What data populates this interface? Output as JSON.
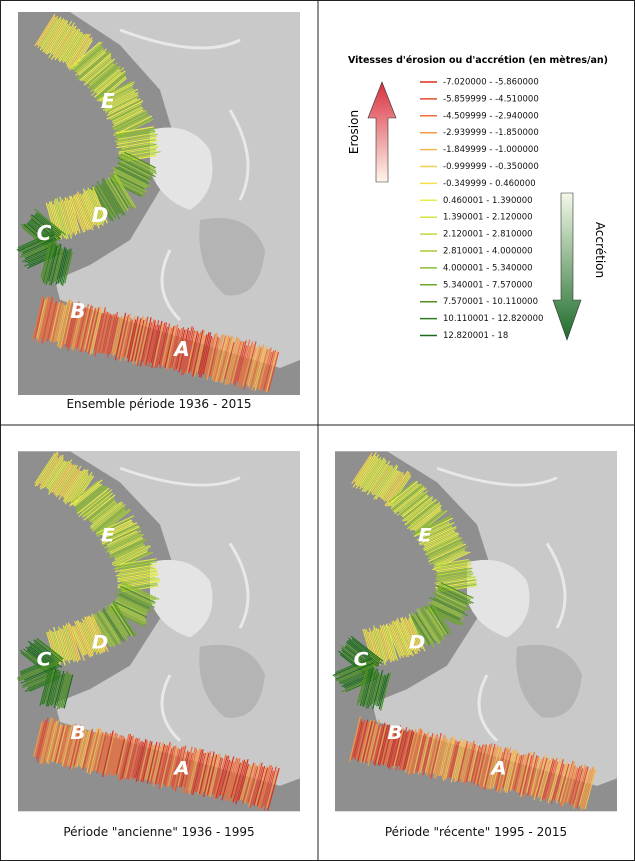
{
  "panels": [
    {
      "caption": "Ensemble période 1936 - 2015",
      "labels": [
        "E",
        "D",
        "C",
        "B",
        "A"
      ]
    },
    {
      "caption": "Période \"ancienne\" 1936 - 1995",
      "labels": [
        "E",
        "D",
        "C",
        "B",
        "A"
      ]
    },
    {
      "caption": "Période \"récente\" 1995 - 2015",
      "labels": [
        "E",
        "D",
        "C",
        "B",
        "A"
      ]
    }
  ],
  "legend": {
    "title": "Vitesses d'érosion ou d'accrétion (en mètres/an)",
    "erosion": "Erosion",
    "accretion": "Accrétion",
    "items": [
      {
        "label": "-7.020000 - -5.860000",
        "color": "#d7301f"
      },
      {
        "label": "-5.859999 - -4.510000",
        "color": "#e34a33"
      },
      {
        "label": "-4.509999 - -2.940000",
        "color": "#ef6f3a"
      },
      {
        "label": "-2.939999 - -1.850000",
        "color": "#f29a45"
      },
      {
        "label": "-1.849999 - -1.000000",
        "color": "#f6b84f"
      },
      {
        "label": "-0.999999 - -0.350000",
        "color": "#f5cf4f"
      },
      {
        "label": "-0.349999 - 0.460000",
        "color": "#f2e14c"
      },
      {
        "label": "0.460001 - 1.390000",
        "color": "#eaec4a"
      },
      {
        "label": "1.390001 - 2.120000",
        "color": "#d6e646"
      },
      {
        "label": "2.120001 - 2.810000",
        "color": "#c0da40"
      },
      {
        "label": "2.810001 - 4.000000",
        "color": "#a6cc3a"
      },
      {
        "label": "4.000001 - 5.340000",
        "color": "#8ebd34"
      },
      {
        "label": "5.340001 - 7.570000",
        "color": "#6fa62d"
      },
      {
        "label": "7.570001 - 10.110000",
        "color": "#4f8f26"
      },
      {
        "label": "10.110001 - 12.820000",
        "color": "#2f7a22"
      },
      {
        "label": "12.820001 - 18",
        "color": "#1a6a1d"
      }
    ]
  }
}
